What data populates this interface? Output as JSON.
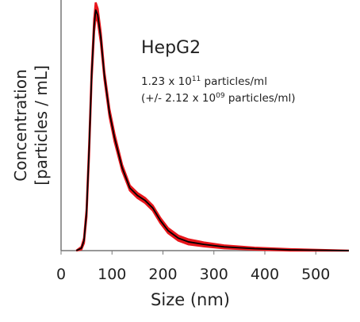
{
  "chart_data": {
    "type": "line",
    "xlabel": "Size (nm)",
    "ylabel": [
      "Concentration",
      "[particles / mL]"
    ],
    "xlim": [
      0,
      565
    ],
    "xticks": [
      0,
      100,
      200,
      300,
      400,
      500
    ],
    "ylim": [
      0,
      100
    ],
    "series": [
      {
        "name": "HepG2",
        "color": "#000000",
        "band_color": "#e8161b",
        "x": [
          30,
          40,
          45,
          50,
          55,
          60,
          65,
          68,
          72,
          78,
          85,
          95,
          105,
          120,
          135,
          150,
          165,
          180,
          195,
          210,
          230,
          250,
          280,
          320,
          380,
          450,
          565
        ],
        "values": [
          0,
          1,
          4,
          15,
          40,
          70,
          90,
          96,
          94,
          85,
          70,
          55,
          45,
          33,
          25,
          22,
          20,
          17,
          12,
          8,
          5,
          3.5,
          2.5,
          1.5,
          0.8,
          0.3,
          0
        ],
        "error": [
          0,
          0.5,
          1,
          1.5,
          2,
          2,
          2.5,
          3,
          2.5,
          2,
          1.5,
          1.5,
          1.5,
          1.2,
          1,
          1,
          1,
          1,
          1,
          1,
          1,
          1,
          0.8,
          0.6,
          0.4,
          0.3,
          0
        ]
      }
    ],
    "annotations": [
      {
        "text": "1.23 x 10",
        "sup": "11",
        "suffix": " particles/ml"
      },
      {
        "text": "(+/- 2.12 x 10",
        "sup": "09",
        "suffix": " particles/ml)"
      }
    ]
  }
}
